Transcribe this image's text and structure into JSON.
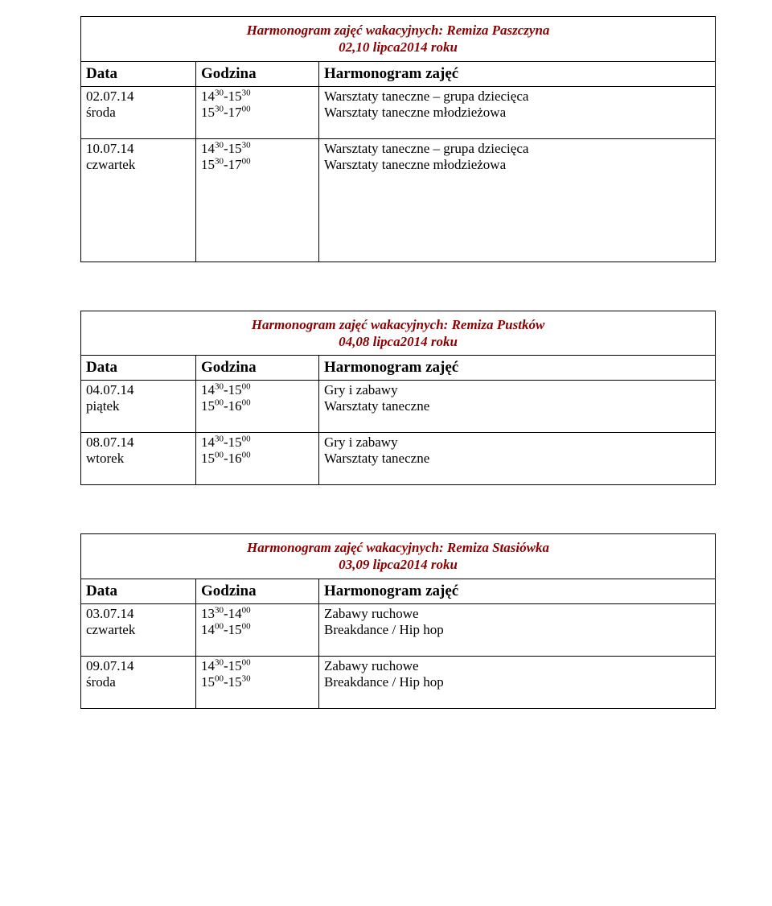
{
  "colors": {
    "heading": "#8b0000",
    "text": "#000000",
    "border": "#000000",
    "background": "#ffffff"
  },
  "headers": {
    "date": "Data",
    "time": "Godzina",
    "desc": "Harmonogram zajęć"
  },
  "sections": [
    {
      "title_l1": "Harmonogram zajęć wakacyjnych: Remiza Paszczyna",
      "title_l2": "02,10 lipca2014 roku",
      "tall": true,
      "rows": [
        {
          "date_l1": "02.07.14",
          "date_l2": "środa",
          "time_l1": {
            "a": "14",
            "as": "30",
            "b": "15",
            "bs": "30"
          },
          "time_l2": {
            "a": "15",
            "as": "30",
            "b": "17",
            "bs": "00"
          },
          "desc_l1": "Warsztaty taneczne – grupa dziecięca",
          "desc_l2": "Warsztaty taneczne młodzieżowa"
        },
        {
          "date_l1": "10.07.14",
          "date_l2": "czwartek",
          "time_l1": {
            "a": "14",
            "as": "30",
            "b": "15",
            "bs": "30"
          },
          "time_l2": {
            "a": "15",
            "as": "30",
            "b": "17",
            "bs": "00"
          },
          "desc_l1": "Warsztaty taneczne – grupa dziecięca",
          "desc_l2": "Warsztaty taneczne młodzieżowa"
        }
      ]
    },
    {
      "title_l1": "Harmonogram zajęć wakacyjnych: Remiza Pustków",
      "title_l2": "04,08 lipca2014 roku",
      "tall": false,
      "rows": [
        {
          "date_l1": "04.07.14",
          "date_l2": "piątek",
          "time_l1": {
            "a": "14",
            "as": "30",
            "b": "15",
            "bs": "00"
          },
          "time_l2": {
            "a": "15",
            "as": "00",
            "b": "16",
            "bs": "00"
          },
          "desc_l1": "Gry i zabawy",
          "desc_l2": "Warsztaty taneczne"
        },
        {
          "date_l1": "08.07.14",
          "date_l2": "wtorek",
          "time_l1": {
            "a": "14",
            "as": "30",
            "b": "15",
            "bs": "00"
          },
          "time_l2": {
            "a": "15",
            "as": "00",
            "b": "16",
            "bs": "00"
          },
          "desc_l1": "Gry i zabawy",
          "desc_l2": "Warsztaty taneczne"
        }
      ]
    },
    {
      "title_l1": "Harmonogram zajęć wakacyjnych: Remiza Stasiówka",
      "title_l2": "03,09 lipca2014 roku",
      "tall": false,
      "rows": [
        {
          "date_l1": "03.07.14",
          "date_l2": "czwartek",
          "time_l1": {
            "a": "13",
            "as": "30",
            "b": "14",
            "bs": "00"
          },
          "time_l2": {
            "a": "14",
            "as": "00",
            "b": "15",
            "bs": "00"
          },
          "desc_l1": "Zabawy ruchowe",
          "desc_l2": "Breakdance / Hip hop"
        },
        {
          "date_l1": "09.07.14",
          "date_l2": "środa",
          "time_l1": {
            "a": "14",
            "as": "30",
            "b": "15",
            "bs": "00"
          },
          "time_l2": {
            "a": "15",
            "as": "00",
            "b": "15",
            "bs": "30"
          },
          "desc_l1": "Zabawy ruchowe",
          "desc_l2": "Breakdance / Hip hop"
        }
      ]
    }
  ]
}
